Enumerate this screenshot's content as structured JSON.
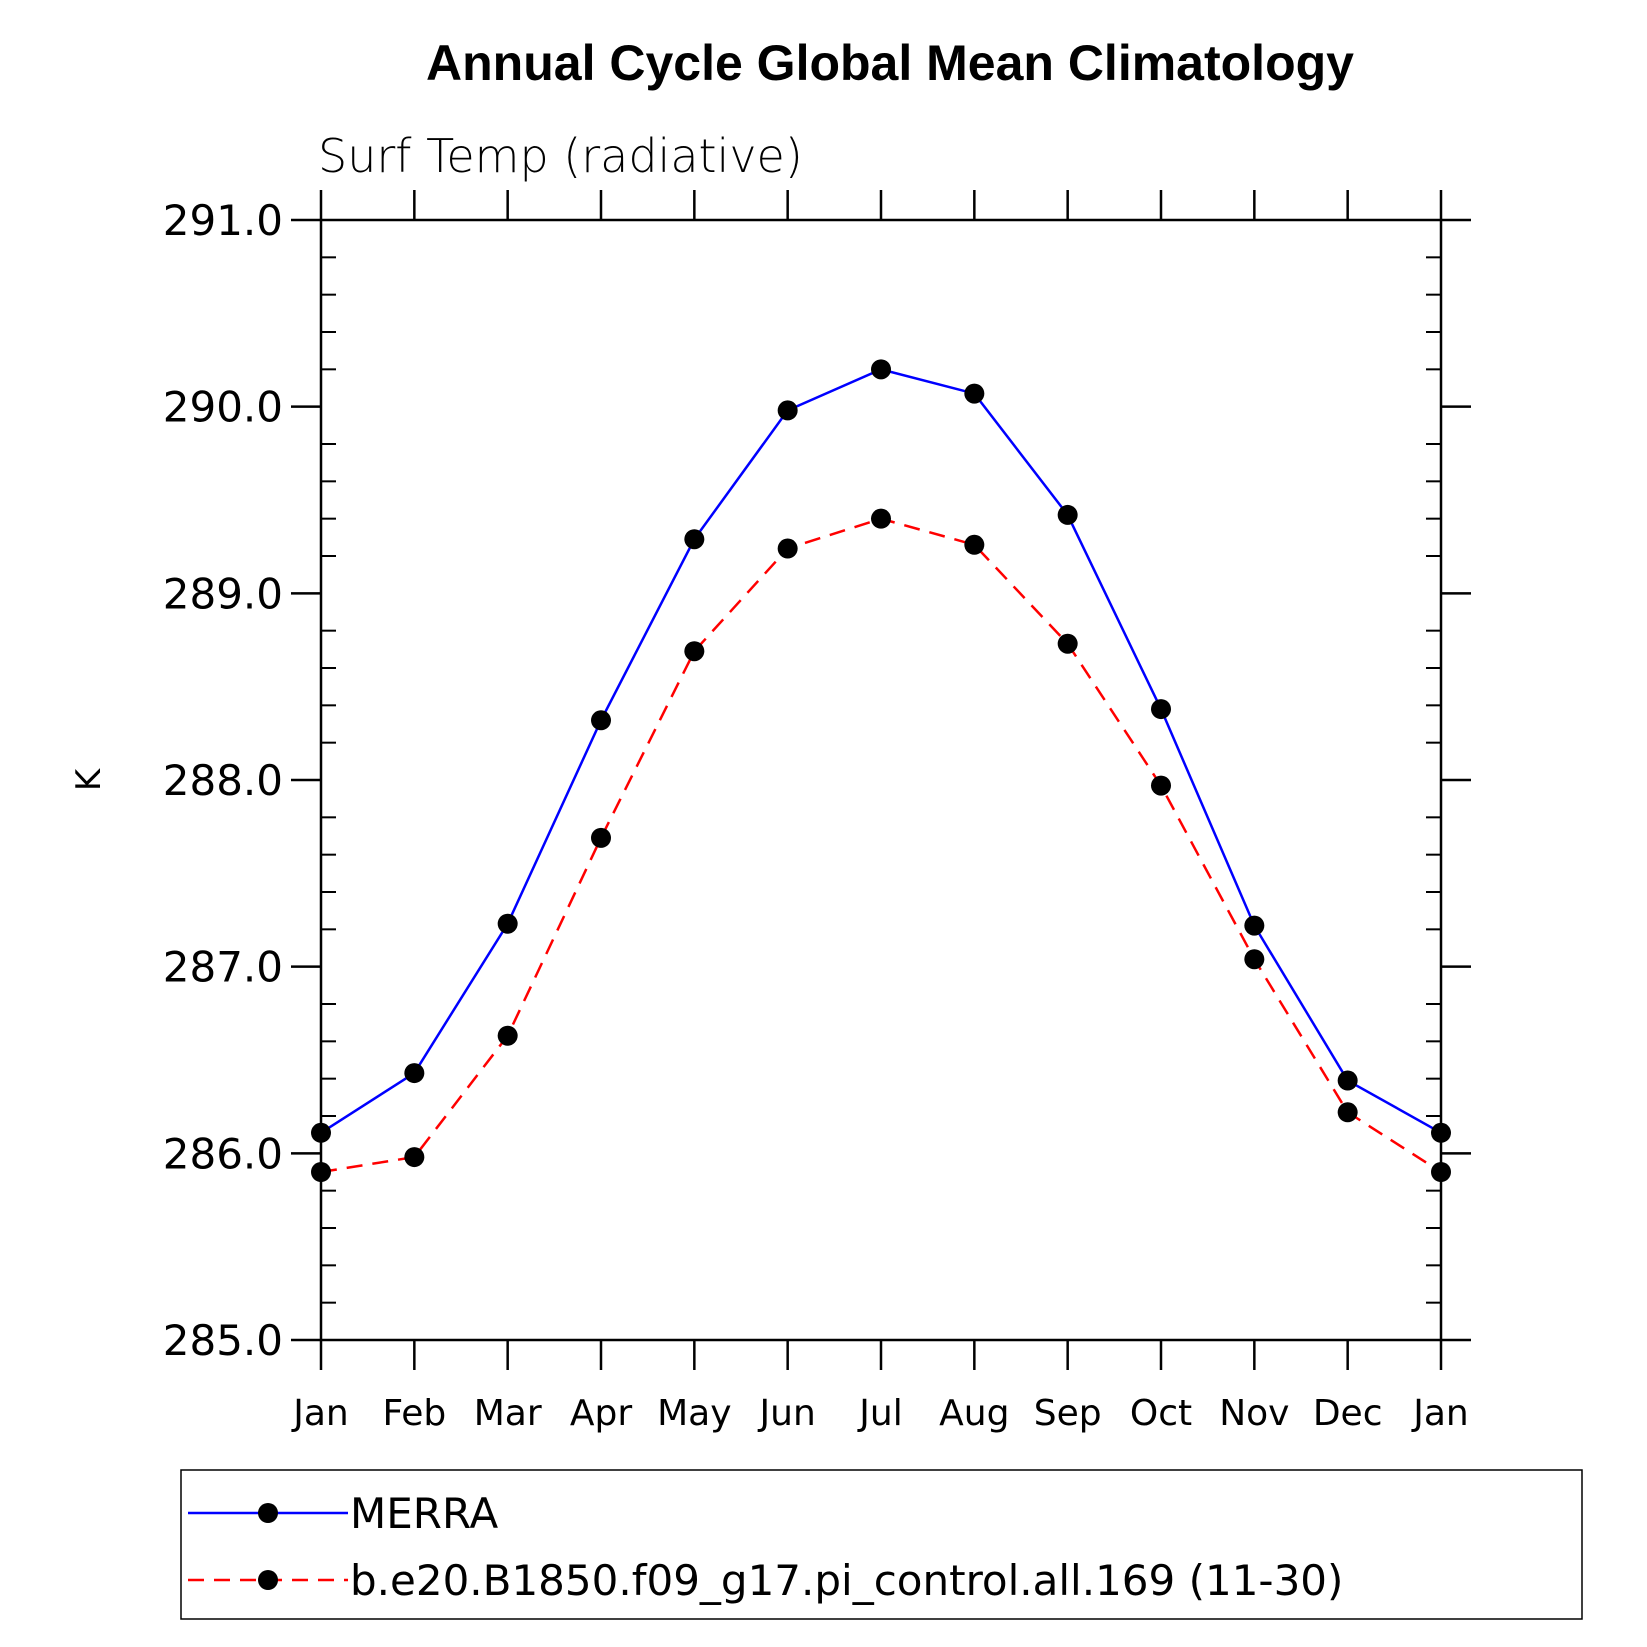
{
  "chart_data": {
    "type": "line",
    "title": "Annual Cycle Global Mean Climatology",
    "subtitle": "Surf Temp (radiative)",
    "xlabel": "",
    "ylabel": "K",
    "ylim": [
      285.0,
      291.0
    ],
    "yticks": [
      "285.0",
      "286.0",
      "287.0",
      "288.0",
      "289.0",
      "290.0",
      "291.0"
    ],
    "categories": [
      "Jan",
      "Feb",
      "Mar",
      "Apr",
      "May",
      "Jun",
      "Jul",
      "Aug",
      "Sep",
      "Oct",
      "Nov",
      "Dec",
      "Jan"
    ],
    "grid": false,
    "legend": "bottom",
    "series": [
      {
        "name": "MERRA",
        "color": "#0000ff",
        "dash": "solid",
        "values": [
          286.11,
          286.43,
          287.23,
          288.32,
          289.29,
          289.98,
          290.2,
          290.07,
          289.42,
          288.38,
          287.22,
          286.39,
          286.11
        ]
      },
      {
        "name": "b.e20.B1850.f09_g17.pi_control.all.169 (11-30)",
        "color": "#ff0000",
        "dash": "dashed",
        "values": [
          285.9,
          285.98,
          286.63,
          287.69,
          288.69,
          289.24,
          289.4,
          289.26,
          288.73,
          287.97,
          287.04,
          286.22,
          285.9
        ]
      }
    ]
  }
}
